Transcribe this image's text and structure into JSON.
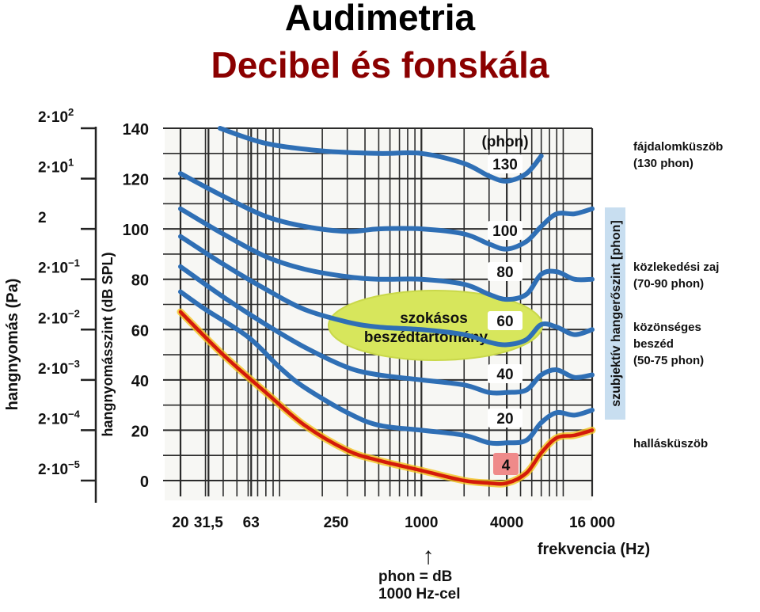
{
  "header": {
    "title": "Audimetria",
    "subtitle": "Decibel és fonskála"
  },
  "colors": {
    "phon_curve": "#2f6fb5",
    "threshold_curve": "#d41a0a",
    "threshold_glow": "#f2c21d",
    "speech_zone": "#d7e65c",
    "label_badge": "#ffffff",
    "threshold_badge": "#ef8a8a",
    "title": "#000000",
    "subtitle": "#8b0000",
    "vertical_label_bg": "#c8def0"
  },
  "chart_data": {
    "type": "line",
    "x_scale": "log",
    "xlim": [
      20,
      16000
    ],
    "ylim": [
      0,
      140
    ],
    "xlabel": "frekvencia (Hz)",
    "ylabel": "hangnyomásszint (dB SPL)",
    "ylabel_secondary": "hangnyomás (Pa)",
    "ylabel_right": "szubjektív hangerőszint [phon]",
    "x_ticks": [
      {
        "value": 20,
        "label": "20"
      },
      {
        "value": 31.5,
        "label": "31,5"
      },
      {
        "value": 63,
        "label": "63"
      },
      {
        "value": 250,
        "label": "250"
      },
      {
        "value": 1000,
        "label": "1000"
      },
      {
        "value": 4000,
        "label": "4000"
      },
      {
        "value": 16000,
        "label": "16 000"
      }
    ],
    "y_ticks": [
      0,
      20,
      40,
      60,
      80,
      100,
      120,
      140
    ],
    "pa_ticks": [
      {
        "db": 0,
        "mant": "2·10",
        "exp": "−5"
      },
      {
        "db": 20,
        "mant": "2·10",
        "exp": "−4"
      },
      {
        "db": 40,
        "mant": "2·10",
        "exp": "−3"
      },
      {
        "db": 60,
        "mant": "2·10",
        "exp": "−2"
      },
      {
        "db": 80,
        "mant": "2·10",
        "exp": "−1"
      },
      {
        "db": 100,
        "mant": "2",
        "exp": ""
      },
      {
        "db": 120,
        "mant": "2·10",
        "exp": "1"
      },
      {
        "db": 140,
        "mant": "2·10",
        "exp": "2"
      }
    ],
    "phon_header": "(phon)",
    "series": [
      {
        "label": "130",
        "points": [
          [
            38,
            140
          ],
          [
            80,
            134
          ],
          [
            200,
            131
          ],
          [
            500,
            130
          ],
          [
            1000,
            130
          ],
          [
            2000,
            126
          ],
          [
            3000,
            121
          ],
          [
            4000,
            119
          ],
          [
            5500,
            122
          ],
          [
            7000,
            129
          ]
        ]
      },
      {
        "label": "100",
        "points": [
          [
            20,
            122
          ],
          [
            40,
            113
          ],
          [
            80,
            105
          ],
          [
            150,
            101
          ],
          [
            300,
            99
          ],
          [
            500,
            100
          ],
          [
            1000,
            100
          ],
          [
            2000,
            98
          ],
          [
            3000,
            94
          ],
          [
            4000,
            92
          ],
          [
            5500,
            95
          ],
          [
            7000,
            101
          ],
          [
            9000,
            106
          ],
          [
            12000,
            106
          ],
          [
            16000,
            108
          ]
        ]
      },
      {
        "label": "80",
        "points": [
          [
            20,
            108
          ],
          [
            40,
            98
          ],
          [
            80,
            89
          ],
          [
            150,
            84
          ],
          [
            300,
            81
          ],
          [
            500,
            80
          ],
          [
            1000,
            80
          ],
          [
            2000,
            78
          ],
          [
            3000,
            74
          ],
          [
            4000,
            72
          ],
          [
            5500,
            74
          ],
          [
            7000,
            82
          ],
          [
            9000,
            83
          ],
          [
            12000,
            80
          ],
          [
            16000,
            80
          ]
        ]
      },
      {
        "label": "60",
        "points": [
          [
            20,
            97
          ],
          [
            40,
            86
          ],
          [
            80,
            76
          ],
          [
            150,
            68
          ],
          [
            300,
            63
          ],
          [
            500,
            61
          ],
          [
            1000,
            60
          ],
          [
            2000,
            58
          ],
          [
            3000,
            55
          ],
          [
            4000,
            54
          ],
          [
            5500,
            56
          ],
          [
            7000,
            62
          ],
          [
            9000,
            61
          ],
          [
            12000,
            58
          ],
          [
            16000,
            60
          ]
        ]
      },
      {
        "label": "40",
        "points": [
          [
            20,
            85
          ],
          [
            40,
            73
          ],
          [
            80,
            62
          ],
          [
            150,
            53
          ],
          [
            300,
            45
          ],
          [
            500,
            42
          ],
          [
            1000,
            40
          ],
          [
            2000,
            38
          ],
          [
            3000,
            35
          ],
          [
            4000,
            35
          ],
          [
            5500,
            36
          ],
          [
            7000,
            42
          ],
          [
            9000,
            44
          ],
          [
            12000,
            41
          ],
          [
            16000,
            42
          ]
        ]
      },
      {
        "label": "20",
        "points": [
          [
            20,
            75
          ],
          [
            30,
            68
          ],
          [
            60,
            57
          ],
          [
            100,
            45
          ],
          [
            150,
            37
          ],
          [
            300,
            27
          ],
          [
            500,
            22
          ],
          [
            1000,
            20
          ],
          [
            2000,
            18
          ],
          [
            3000,
            15
          ],
          [
            4000,
            15
          ],
          [
            5500,
            16
          ],
          [
            7000,
            23
          ],
          [
            9000,
            27
          ],
          [
            12000,
            26
          ],
          [
            16000,
            28
          ]
        ]
      }
    ],
    "threshold": {
      "name": "hallásküszöb",
      "label": "4",
      "points": [
        [
          20,
          67
        ],
        [
          40,
          50
        ],
        [
          80,
          35
        ],
        [
          150,
          22
        ],
        [
          300,
          12
        ],
        [
          500,
          8
        ],
        [
          1000,
          4
        ],
        [
          2000,
          0
        ],
        [
          3000,
          -1
        ],
        [
          4000,
          -1
        ],
        [
          5500,
          3
        ],
        [
          7000,
          11
        ],
        [
          9000,
          17
        ],
        [
          12000,
          18
        ],
        [
          16000,
          20
        ]
      ]
    },
    "speech_zone_label": [
      "szokásos",
      "beszédtartomány"
    ],
    "annotations": [
      {
        "lines": [
          "fájdalomküszöb",
          "(130 phon)"
        ],
        "db": 136
      },
      {
        "lines": [
          "közlekedési zaj",
          "(70-90 phon)"
        ],
        "db": 85
      },
      {
        "lines": [
          "közönséges",
          "beszéd",
          "(50-75 phon)"
        ],
        "db": 60
      },
      {
        "lines": [
          "hallásküszöb"
        ],
        "db": 15
      }
    ],
    "reference": {
      "arrow": "↑",
      "lines": [
        "phon = dB",
        "1000 Hz-cel"
      ]
    }
  }
}
